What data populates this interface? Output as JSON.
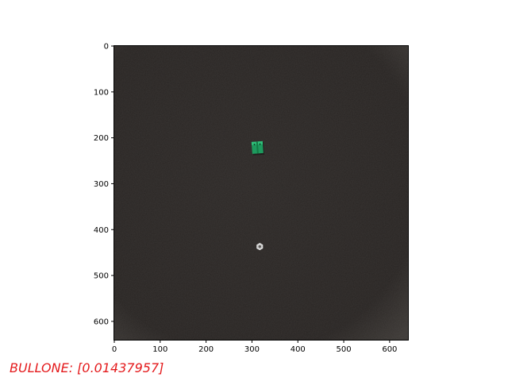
{
  "chart_data": {
    "type": "image",
    "image_extent": {
      "x": [
        0,
        640
      ],
      "y": [
        640,
        0
      ]
    },
    "y_axis_inverted": true,
    "xticks": [
      0,
      100,
      200,
      300,
      400,
      500,
      600
    ],
    "yticks": [
      0,
      100,
      200,
      300,
      400,
      500,
      600
    ],
    "objects": [
      {
        "kind": "green-connector-block",
        "x": 312,
        "y": 222,
        "color": "#1e9a5e"
      },
      {
        "kind": "hex-nut",
        "x": 317,
        "y": 437,
        "color": "#cfcfcf"
      }
    ],
    "background_color": "#2a2624",
    "annotation": {
      "text": "BULLONE: [0.01437957]",
      "color": "#e41a1c",
      "placement": "bottom-left"
    }
  }
}
